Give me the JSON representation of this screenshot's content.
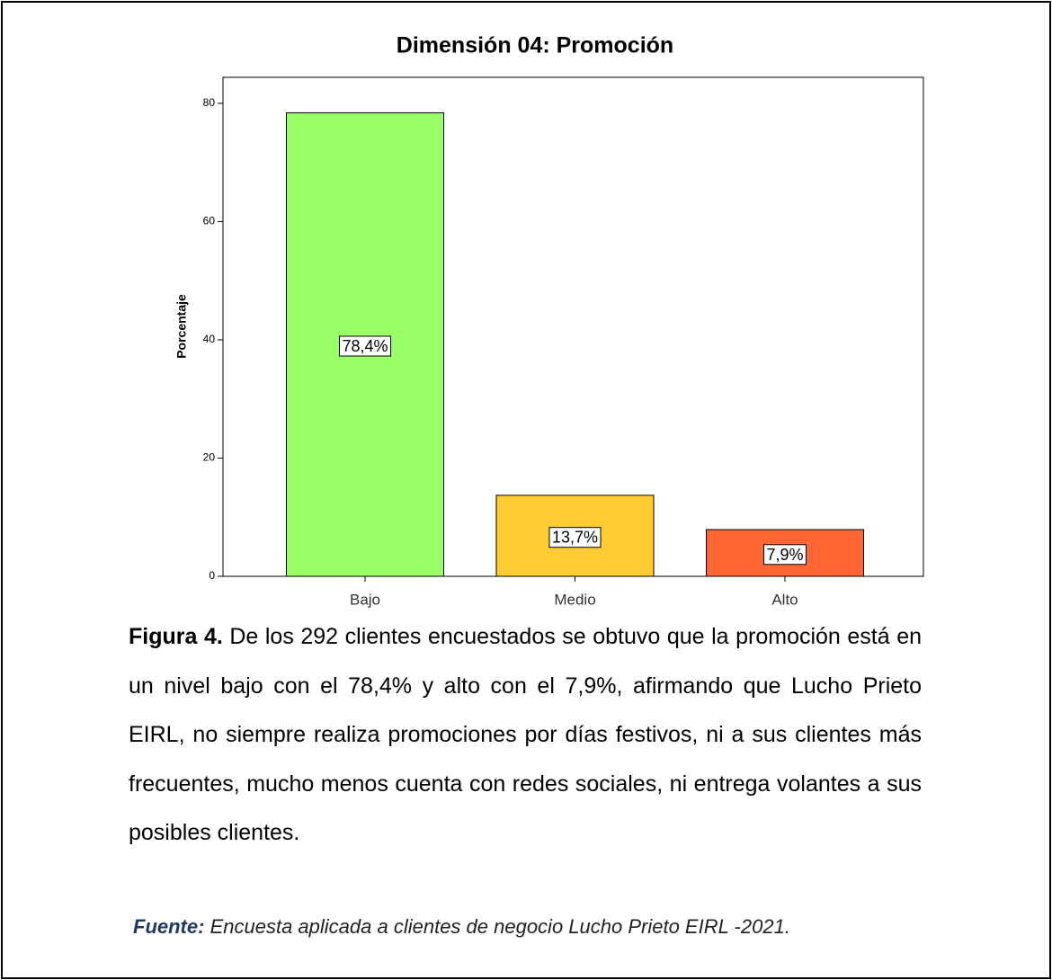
{
  "chart_data": {
    "type": "bar",
    "title": "Dimensión 04: Promoción",
    "y_label": "Porcentaje",
    "categories": [
      "Bajo",
      "Medio",
      "Alto"
    ],
    "values": [
      78.4,
      13.7,
      7.9
    ],
    "value_labels": [
      "78,4%",
      "13,7%",
      "7,9%"
    ],
    "colors": [
      "#99ff66",
      "#ffcc33",
      "#ff6633"
    ],
    "ylim": [
      0,
      84.4
    ],
    "yticks": [
      0,
      20,
      40,
      60,
      80
    ]
  },
  "caption": {
    "label": "Figura 4.",
    "text": "De los 292 clientes encuestados se obtuvo que la promoción está en un nivel bajo con el 78,4% y alto con el 7,9%, afirmando que Lucho Prieto EIRL, no siempre realiza promociones por días festivos, ni a sus clientes más frecuentes, mucho menos cuenta con redes sociales, ni entrega volantes a sus posibles clientes."
  },
  "source": {
    "label": "Fuente:",
    "text": "Encuesta aplicada a clientes de negocio Lucho Prieto EIRL -2021."
  }
}
